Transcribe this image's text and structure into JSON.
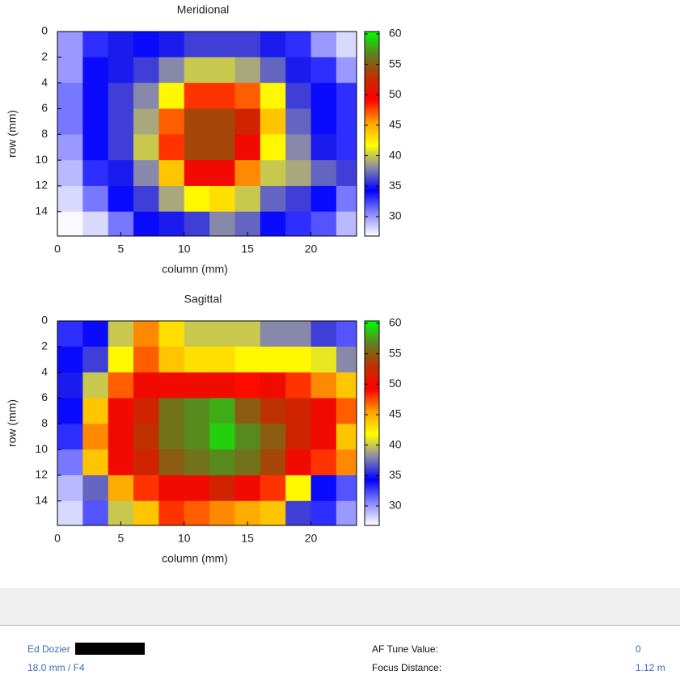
{
  "chart_data": [
    {
      "type": "heatmap",
      "title": "Meridional",
      "x_label": "column (mm)",
      "y_label": "row (mm)",
      "x": [
        1,
        3,
        5,
        7,
        9,
        11,
        13,
        15,
        17,
        19,
        21,
        23
      ],
      "y": [
        1,
        3,
        5,
        7,
        9,
        11,
        13,
        15
      ],
      "z": [
        [
          30,
          33,
          35,
          34,
          35,
          36,
          36,
          36,
          35,
          33,
          30,
          28
        ],
        [
          30,
          34,
          35,
          36,
          38,
          40,
          40,
          39,
          37,
          35,
          33,
          30
        ],
        [
          31,
          34,
          36,
          38,
          42,
          48,
          48,
          47,
          42,
          36,
          34,
          33
        ],
        [
          31,
          34,
          36,
          39,
          47,
          54,
          54,
          52,
          44,
          37,
          34,
          33
        ],
        [
          30,
          34,
          36,
          40,
          48,
          54,
          54,
          50,
          42,
          38,
          35,
          33
        ],
        [
          29,
          33,
          35,
          38,
          44,
          50,
          50,
          46,
          40,
          39,
          37,
          36
        ],
        [
          28,
          31,
          34,
          36,
          39,
          42,
          43,
          40,
          37,
          36,
          34,
          31
        ],
        [
          27,
          28,
          31,
          34,
          35,
          36,
          38,
          37,
          34,
          33,
          32,
          29
        ]
      ],
      "xlim": [
        0,
        23.6
      ],
      "ylim": [
        0,
        15.9
      ],
      "xticks": [
        0,
        5,
        10,
        15,
        20
      ],
      "yticks": [
        0,
        2,
        4,
        6,
        8,
        10,
        12,
        14
      ],
      "clim": [
        26.8,
        60.4
      ],
      "cticks": [
        30,
        35,
        40,
        45,
        50,
        55,
        60
      ],
      "colormap": [
        "#ffffff",
        "#8888ff",
        "#0000ff",
        "#8888aa",
        "#ffff00",
        "#ffa000",
        "#ff0000",
        "#c03000",
        "#608020",
        "#00ff00"
      ]
    },
    {
      "type": "heatmap",
      "title": "Sagittal",
      "x_label": "column (mm)",
      "y_label": "row (mm)",
      "x": [
        1,
        3,
        5,
        7,
        9,
        11,
        13,
        15,
        17,
        19,
        21,
        23
      ],
      "y": [
        1,
        3,
        5,
        7,
        9,
        11,
        13,
        15
      ],
      "z": [
        [
          33,
          34,
          40,
          46,
          43,
          40,
          40,
          40,
          38,
          38,
          36,
          32
        ],
        [
          34,
          36,
          42,
          47,
          44,
          43,
          43,
          42,
          42,
          42,
          41,
          38
        ],
        [
          35,
          40,
          47,
          50,
          50,
          50,
          50,
          49,
          50,
          48,
          46,
          44
        ],
        [
          34,
          44,
          50,
          52,
          56,
          57,
          58,
          55,
          53,
          52,
          50,
          47
        ],
        [
          33,
          46,
          50,
          53,
          56,
          57,
          59,
          57,
          55,
          52,
          50,
          44
        ],
        [
          31,
          44,
          50,
          52,
          55,
          56,
          57,
          56,
          54,
          50,
          48,
          46
        ],
        [
          29,
          37,
          45,
          48,
          50,
          50,
          52,
          50,
          48,
          42,
          34,
          32
        ],
        [
          28,
          32,
          40,
          44,
          48,
          47,
          46,
          45,
          44,
          36,
          33,
          30
        ]
      ],
      "xlim": [
        0,
        23.6
      ],
      "ylim": [
        0,
        15.9
      ],
      "xticks": [
        0,
        5,
        10,
        15,
        20
      ],
      "yticks": [
        0,
        2,
        4,
        6,
        8,
        10,
        12,
        14
      ],
      "clim": [
        26.8,
        60.4
      ],
      "cticks": [
        30,
        35,
        40,
        45,
        50,
        55,
        60
      ],
      "colormap": [
        "#ffffff",
        "#8888ff",
        "#0000ff",
        "#8888aa",
        "#ffff00",
        "#ffa000",
        "#ff0000",
        "#c03000",
        "#608020",
        "#00ff00"
      ]
    }
  ],
  "footer": {
    "author": "Ed Dozier",
    "lens": "18.0 mm / F4",
    "af_tune_label": "AF Tune Value:",
    "af_tune_value": 0,
    "focus_label": "Focus Distance:",
    "focus_value": "1.12 m"
  }
}
